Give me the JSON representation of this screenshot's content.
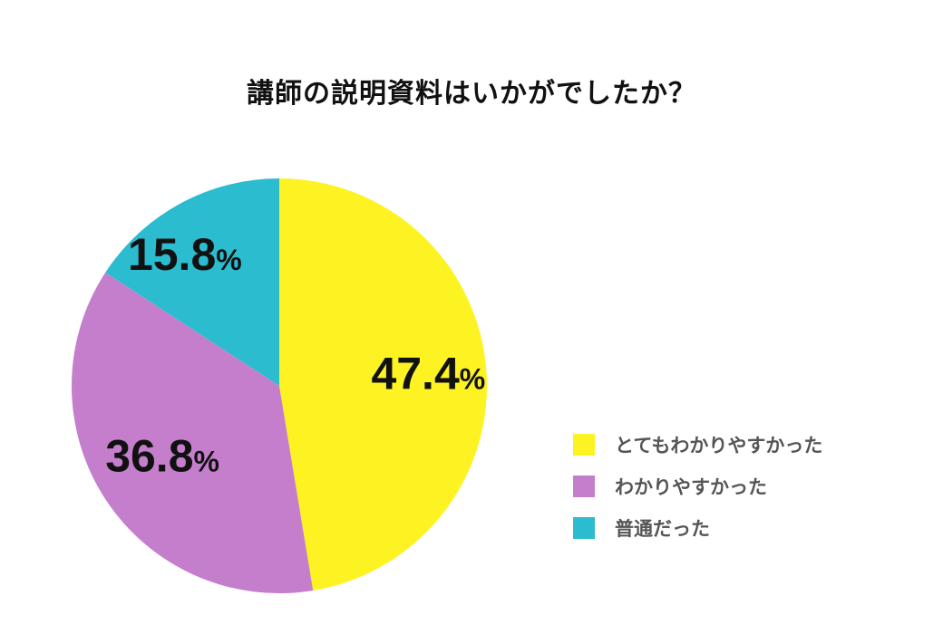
{
  "chart_data": {
    "type": "pie",
    "title": "講師の説明資料はいかがでしたか？",
    "unit": "%",
    "slices": [
      {
        "label": "とてもわかりやすかった",
        "value": 47.4,
        "display": "47.4",
        "color": "#FDF322"
      },
      {
        "label": "わかりやすかった",
        "value": 36.8,
        "display": "36.8",
        "color": "#C57ECC"
      },
      {
        "label": "普通だった",
        "value": 15.8,
        "display": "15.8",
        "color": "#2CBCD0"
      }
    ],
    "legend_position": "bottom-right"
  }
}
